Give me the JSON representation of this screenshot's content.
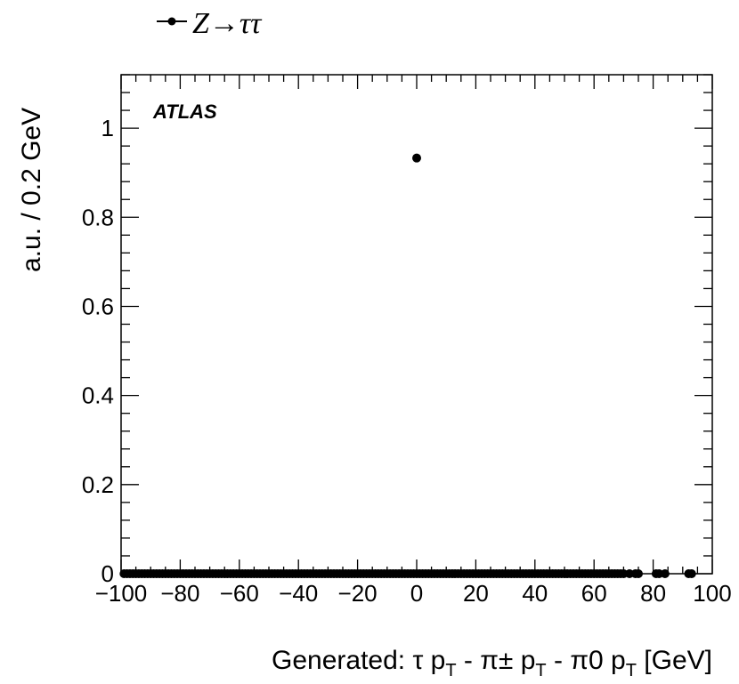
{
  "chart_data": {
    "type": "scatter",
    "legend": {
      "label": "Z→ττ",
      "marker": "circle",
      "color": "#000000"
    },
    "annotation": "ATLAS",
    "ylabel": "a.u. / 0.2 GeV",
    "xlabel": {
      "prefix": "Generated: ",
      "tau": "τ",
      "p": "p",
      "sub": "T",
      "sep": " - ",
      "pi_charged": "π±",
      "pi_neutral": "π0",
      "unit": " [GeV]"
    },
    "xlim": [
      -100,
      100
    ],
    "ylim": [
      0,
      1.12
    ],
    "x_ticks": [
      "−100",
      "−80",
      "−60",
      "−40",
      "−20",
      "0",
      "20",
      "40",
      "60",
      "80",
      "100"
    ],
    "y_ticks": [
      "0",
      "0.2",
      "0.4",
      "0.6",
      "0.8",
      "1"
    ],
    "points": [
      {
        "x": 0,
        "y": 0.933
      }
    ],
    "baseline_points": {
      "y": 0,
      "dense_from": -99,
      "dense_to": 70,
      "step": 1,
      "sparse_x": [
        72,
        74,
        75,
        81,
        82,
        84,
        92,
        93
      ]
    },
    "marker_color": "#000000",
    "grid": false
  }
}
